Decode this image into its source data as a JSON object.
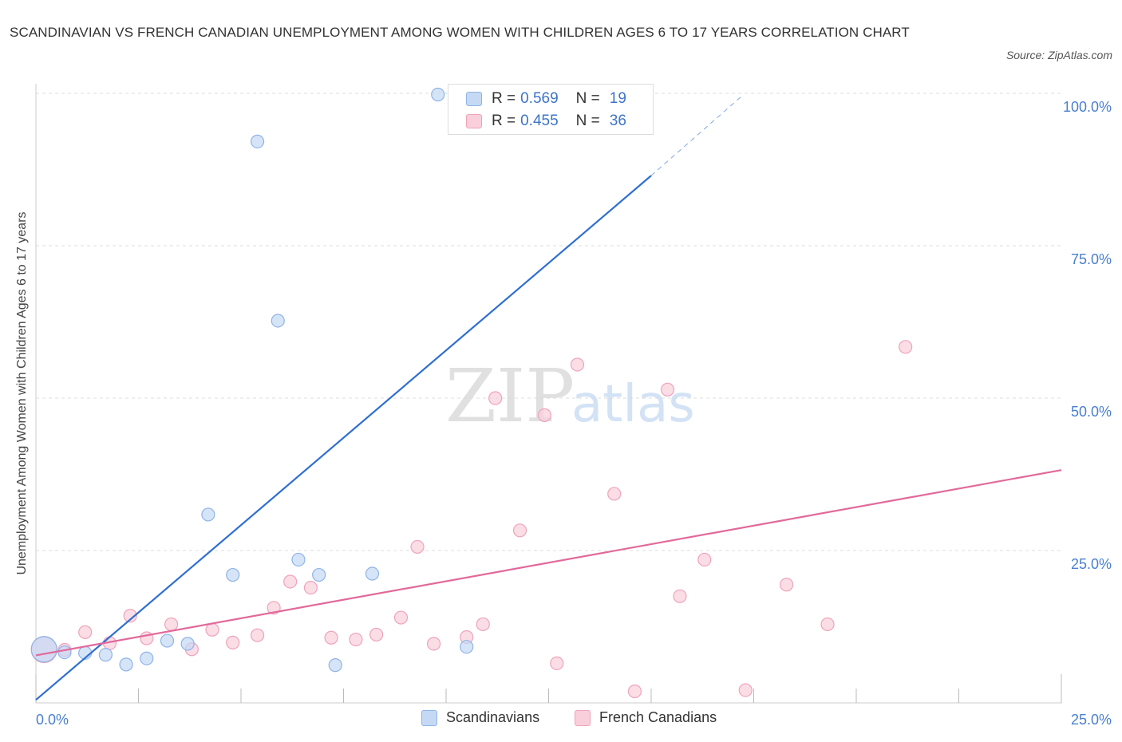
{
  "title": "SCANDINAVIAN VS FRENCH CANADIAN UNEMPLOYMENT AMONG WOMEN WITH CHILDREN AGES 6 TO 17 YEARS CORRELATION CHART",
  "source": "Source: ZipAtlas.com",
  "watermark": {
    "zip": "ZIP",
    "atlas": "atlas"
  },
  "legend": {
    "rows": [
      {
        "r_label": "R =",
        "r_value": "0.569",
        "n_label": "N =",
        "n_value": "19"
      },
      {
        "r_label": "R =",
        "r_value": "0.455",
        "n_label": "N =",
        "n_value": "36"
      }
    ]
  },
  "colors": {
    "scandinavians_fill": "#c5d9f5",
    "scandinavians_stroke": "#8fb4e6",
    "scandinavians_line": "#2f6fd0",
    "french_fill": "#f9cfdc",
    "french_stroke": "#eea3bb",
    "french_line": "#e2699a",
    "tick": "#4a7fd0",
    "grid": "#dddddd"
  },
  "chart_data": {
    "type": "scatter",
    "title": "SCANDINAVIAN VS FRENCH CANADIAN UNEMPLOYMENT AMONG WOMEN WITH CHILDREN AGES 6 TO 17 YEARS CORRELATION CHART",
    "xlabel": "",
    "ylabel": "Unemployment Among Women with Children Ages 6 to 17 years",
    "xlim": [
      0,
      25
    ],
    "ylim": [
      0,
      100
    ],
    "x_ticks": [
      "0.0%",
      "25.0%"
    ],
    "y_ticks": [
      {
        "value": 25,
        "label": "25.0%"
      },
      {
        "value": 50,
        "label": "50.0%"
      },
      {
        "value": 75,
        "label": "75.0%"
      },
      {
        "value": 100,
        "label": "100.0%"
      }
    ],
    "grid": true,
    "legend_position": "top-center and bottom",
    "series": [
      {
        "name": "Scandinavians",
        "R": 0.569,
        "N": 19,
        "trend": {
          "x": [
            0,
            15
          ],
          "y": [
            0.5,
            86.5
          ],
          "extended_to": {
            "x": 17.2,
            "y": 99.5
          }
        },
        "points": [
          {
            "x": 0.2,
            "y": 8.8,
            "big": true
          },
          {
            "x": 0.7,
            "y": 8.3
          },
          {
            "x": 1.2,
            "y": 8.2
          },
          {
            "x": 1.7,
            "y": 7.9
          },
          {
            "x": 2.2,
            "y": 6.3
          },
          {
            "x": 2.7,
            "y": 7.3
          },
          {
            "x": 3.2,
            "y": 10.2
          },
          {
            "x": 3.7,
            "y": 9.7
          },
          {
            "x": 4.2,
            "y": 30.9
          },
          {
            "x": 4.8,
            "y": 21.0
          },
          {
            "x": 5.4,
            "y": 92.1
          },
          {
            "x": 5.9,
            "y": 62.7
          },
          {
            "x": 6.4,
            "y": 23.5
          },
          {
            "x": 6.9,
            "y": 21.0
          },
          {
            "x": 7.3,
            "y": 6.2
          },
          {
            "x": 8.2,
            "y": 21.2
          },
          {
            "x": 9.8,
            "y": 99.8
          },
          {
            "x": 10.5,
            "y": 9.2
          },
          {
            "x": 10.9,
            "y": 99.6
          }
        ]
      },
      {
        "name": "French Canadians",
        "R": 0.455,
        "N": 36,
        "trend": {
          "x": [
            0,
            25
          ],
          "y": [
            7.8,
            38.2
          ]
        },
        "points": [
          {
            "x": 0.2,
            "y": 8.7,
            "big": true
          },
          {
            "x": 0.7,
            "y": 8.7
          },
          {
            "x": 1.2,
            "y": 11.6
          },
          {
            "x": 1.8,
            "y": 9.8
          },
          {
            "x": 2.3,
            "y": 14.3
          },
          {
            "x": 2.7,
            "y": 10.6
          },
          {
            "x": 3.3,
            "y": 12.9
          },
          {
            "x": 3.8,
            "y": 8.8
          },
          {
            "x": 4.3,
            "y": 12.0
          },
          {
            "x": 4.8,
            "y": 9.9
          },
          {
            "x": 5.4,
            "y": 11.1
          },
          {
            "x": 5.8,
            "y": 15.6
          },
          {
            "x": 6.2,
            "y": 19.9
          },
          {
            "x": 6.7,
            "y": 18.9
          },
          {
            "x": 7.2,
            "y": 10.7
          },
          {
            "x": 7.8,
            "y": 10.4
          },
          {
            "x": 8.3,
            "y": 11.2
          },
          {
            "x": 8.9,
            "y": 14.0
          },
          {
            "x": 9.3,
            "y": 25.6
          },
          {
            "x": 9.7,
            "y": 9.7
          },
          {
            "x": 10.5,
            "y": 10.8
          },
          {
            "x": 10.9,
            "y": 12.9
          },
          {
            "x": 11.2,
            "y": 50.0
          },
          {
            "x": 11.8,
            "y": 28.3
          },
          {
            "x": 12.4,
            "y": 47.2
          },
          {
            "x": 12.7,
            "y": 6.5
          },
          {
            "x": 13.2,
            "y": 55.5
          },
          {
            "x": 14.1,
            "y": 34.3
          },
          {
            "x": 14.6,
            "y": 1.9
          },
          {
            "x": 15.4,
            "y": 51.4
          },
          {
            "x": 15.7,
            "y": 17.5
          },
          {
            "x": 16.3,
            "y": 23.5
          },
          {
            "x": 17.3,
            "y": 2.1
          },
          {
            "x": 18.3,
            "y": 19.4
          },
          {
            "x": 19.3,
            "y": 12.9
          },
          {
            "x": 21.2,
            "y": 58.4
          }
        ]
      }
    ]
  }
}
